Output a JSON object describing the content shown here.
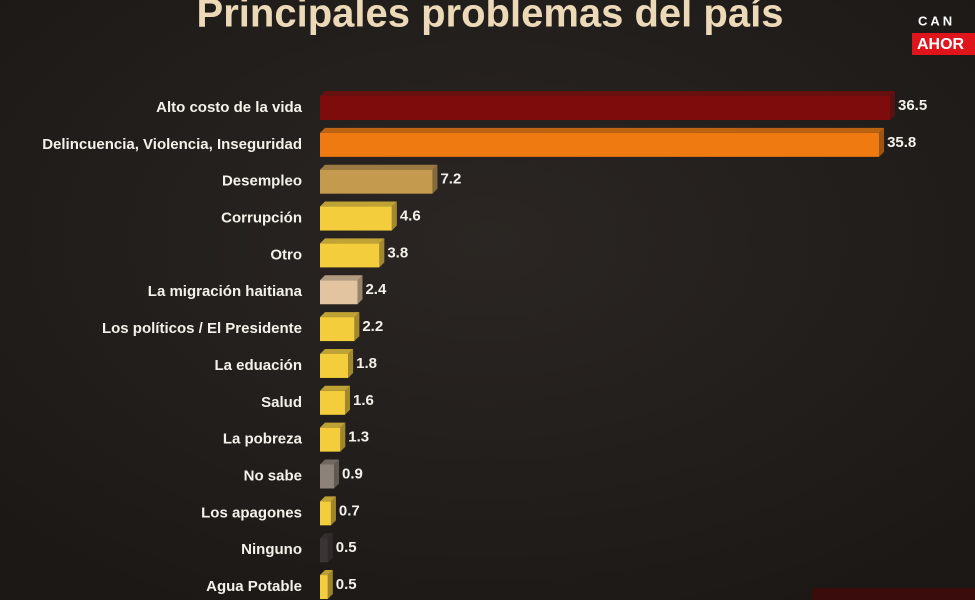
{
  "chart_data": {
    "type": "hbar",
    "title": "Principales problemas del país",
    "categories": [
      "Alto costo de la vida",
      "Delincuencia, Violencia, Inseguridad",
      "Desempleo",
      "Corrupción",
      "Otro",
      "La migración haitiana",
      "Los políticos / El Presidente",
      "La eduación",
      "Salud",
      "La pobreza",
      "No sabe",
      "Los apagones",
      "Ninguno",
      "Agua Potable"
    ],
    "values": [
      36.5,
      35.8,
      7.2,
      4.6,
      3.8,
      2.4,
      2.2,
      1.8,
      1.6,
      1.3,
      0.9,
      0.7,
      0.5,
      0.5
    ],
    "colors": [
      "#7e0c0c",
      "#f07a12",
      "#c39a4e",
      "#f3cd3c",
      "#f3cd3c",
      "#e2c5a0",
      "#f3cd3c",
      "#f3cd3c",
      "#f3cd3c",
      "#f3cd3c",
      "#8c8279",
      "#f3cd3c",
      "#3b3633",
      "#f3cd3c"
    ]
  },
  "logo": {
    "line1": "CAN",
    "line2": "AHOR"
  }
}
